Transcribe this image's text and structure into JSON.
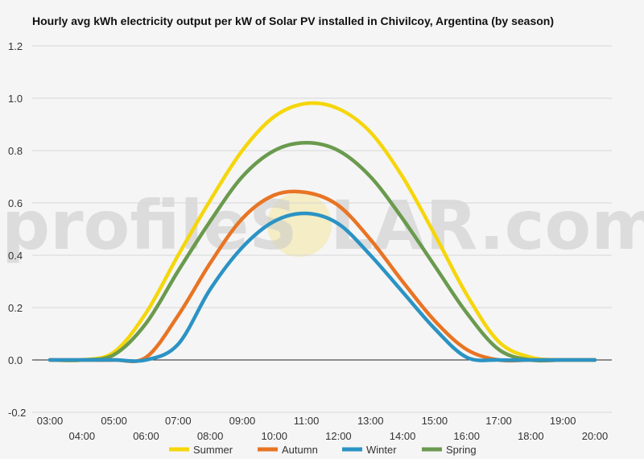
{
  "chart_data": {
    "type": "line",
    "title": "Hourly avg kWh electricity output per kW of Solar PV installed in Chivilcoy, Argentina (by season)",
    "xlabel": "",
    "ylabel": "",
    "ylim": [
      -0.2,
      1.2
    ],
    "yticks": [
      "1.2",
      "1.0",
      "0.8",
      "0.6",
      "0.4",
      "0.2",
      "0.0",
      "-0.2"
    ],
    "ytick_values": [
      1.2,
      1.0,
      0.8,
      0.6,
      0.4,
      0.2,
      0.0,
      -0.2
    ],
    "x": [
      "03:00",
      "04:00",
      "05:00",
      "06:00",
      "07:00",
      "08:00",
      "09:00",
      "10:00",
      "11:00",
      "12:00",
      "13:00",
      "14:00",
      "15:00",
      "16:00",
      "17:00",
      "18:00",
      "19:00",
      "20:00"
    ],
    "grid": true,
    "legend": "bottom",
    "series": [
      {
        "name": "Summer",
        "color": "#f5d60c",
        "values": [
          0.0,
          0.0,
          0.03,
          0.18,
          0.4,
          0.61,
          0.8,
          0.93,
          0.98,
          0.96,
          0.87,
          0.7,
          0.48,
          0.25,
          0.07,
          0.01,
          0.0,
          0.0
        ]
      },
      {
        "name": "Autumn",
        "color": "#e87424",
        "values": [
          0.0,
          0.0,
          0.0,
          0.01,
          0.17,
          0.37,
          0.54,
          0.63,
          0.64,
          0.59,
          0.46,
          0.3,
          0.15,
          0.04,
          0.0,
          0.0,
          0.0,
          0.0
        ]
      },
      {
        "name": "Winter",
        "color": "#2b93c4",
        "values": [
          0.0,
          0.0,
          0.0,
          0.0,
          0.06,
          0.27,
          0.43,
          0.53,
          0.56,
          0.52,
          0.4,
          0.26,
          0.12,
          0.01,
          0.0,
          0.0,
          0.0,
          0.0
        ]
      },
      {
        "name": "Spring",
        "color": "#6a9a4e",
        "values": [
          0.0,
          0.0,
          0.02,
          0.14,
          0.34,
          0.53,
          0.7,
          0.8,
          0.83,
          0.8,
          0.7,
          0.54,
          0.36,
          0.18,
          0.04,
          0.0,
          0.0,
          0.0
        ]
      }
    ]
  },
  "watermark": {
    "text_left": "profileS",
    "text_right": "LAR.com"
  }
}
